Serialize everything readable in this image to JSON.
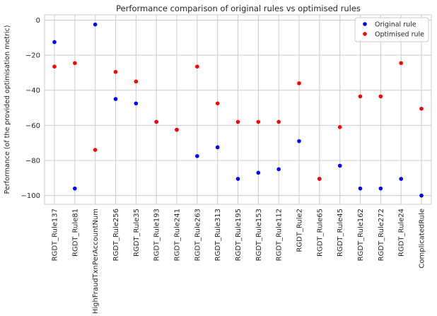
{
  "chart_data": {
    "type": "scatter",
    "title": "Performance comparison of original rules vs optimised rules",
    "xlabel": "",
    "ylabel": "Performance (of the provided optimisation metric)",
    "ylim": [
      -105,
      3
    ],
    "yticks": [
      0,
      -20,
      -40,
      -60,
      -80,
      -100
    ],
    "ytick_labels": [
      "0",
      "−20",
      "−40",
      "−60",
      "−80",
      "−100"
    ],
    "grid": true,
    "legend_position": "top-right",
    "categories": [
      "RGDT_Rule137",
      "RGDT_Rule81",
      "HighFraudTxnPerAccountNum",
      "RGDT_Rule256",
      "RGDT_Rule35",
      "RGDT_Rule193",
      "RGDT_Rule241",
      "RGDT_Rule263",
      "RGDT_Rule313",
      "RGDT_Rule195",
      "RGDT_Rule153",
      "RGDT_Rule112",
      "RGDT_Rule2",
      "RGDT_Rule65",
      "RGDT_Rule45",
      "RGDT_Rule162",
      "RGDT_Rule272",
      "RGDT_Rule24",
      "ComplicatedRule"
    ],
    "series": [
      {
        "name": "Original rule",
        "color": "#0000ff",
        "values": [
          -12.5,
          -96,
          -2.5,
          -45,
          -47.5,
          -58,
          -62.5,
          -77.5,
          -72.5,
          -90.5,
          -87,
          -85,
          -69,
          -90.5,
          -83,
          -96,
          -96,
          -90.5,
          -100
        ]
      },
      {
        "name": "Optimised rule",
        "color": "#ff0000",
        "values": [
          -26.5,
          -24.5,
          -74,
          -29.5,
          -35,
          -58,
          -62.5,
          -26.5,
          -47.5,
          -58,
          -58,
          -58,
          -36,
          -90.5,
          -61,
          -43.5,
          -43.5,
          -24.5,
          -50.5
        ]
      }
    ]
  }
}
